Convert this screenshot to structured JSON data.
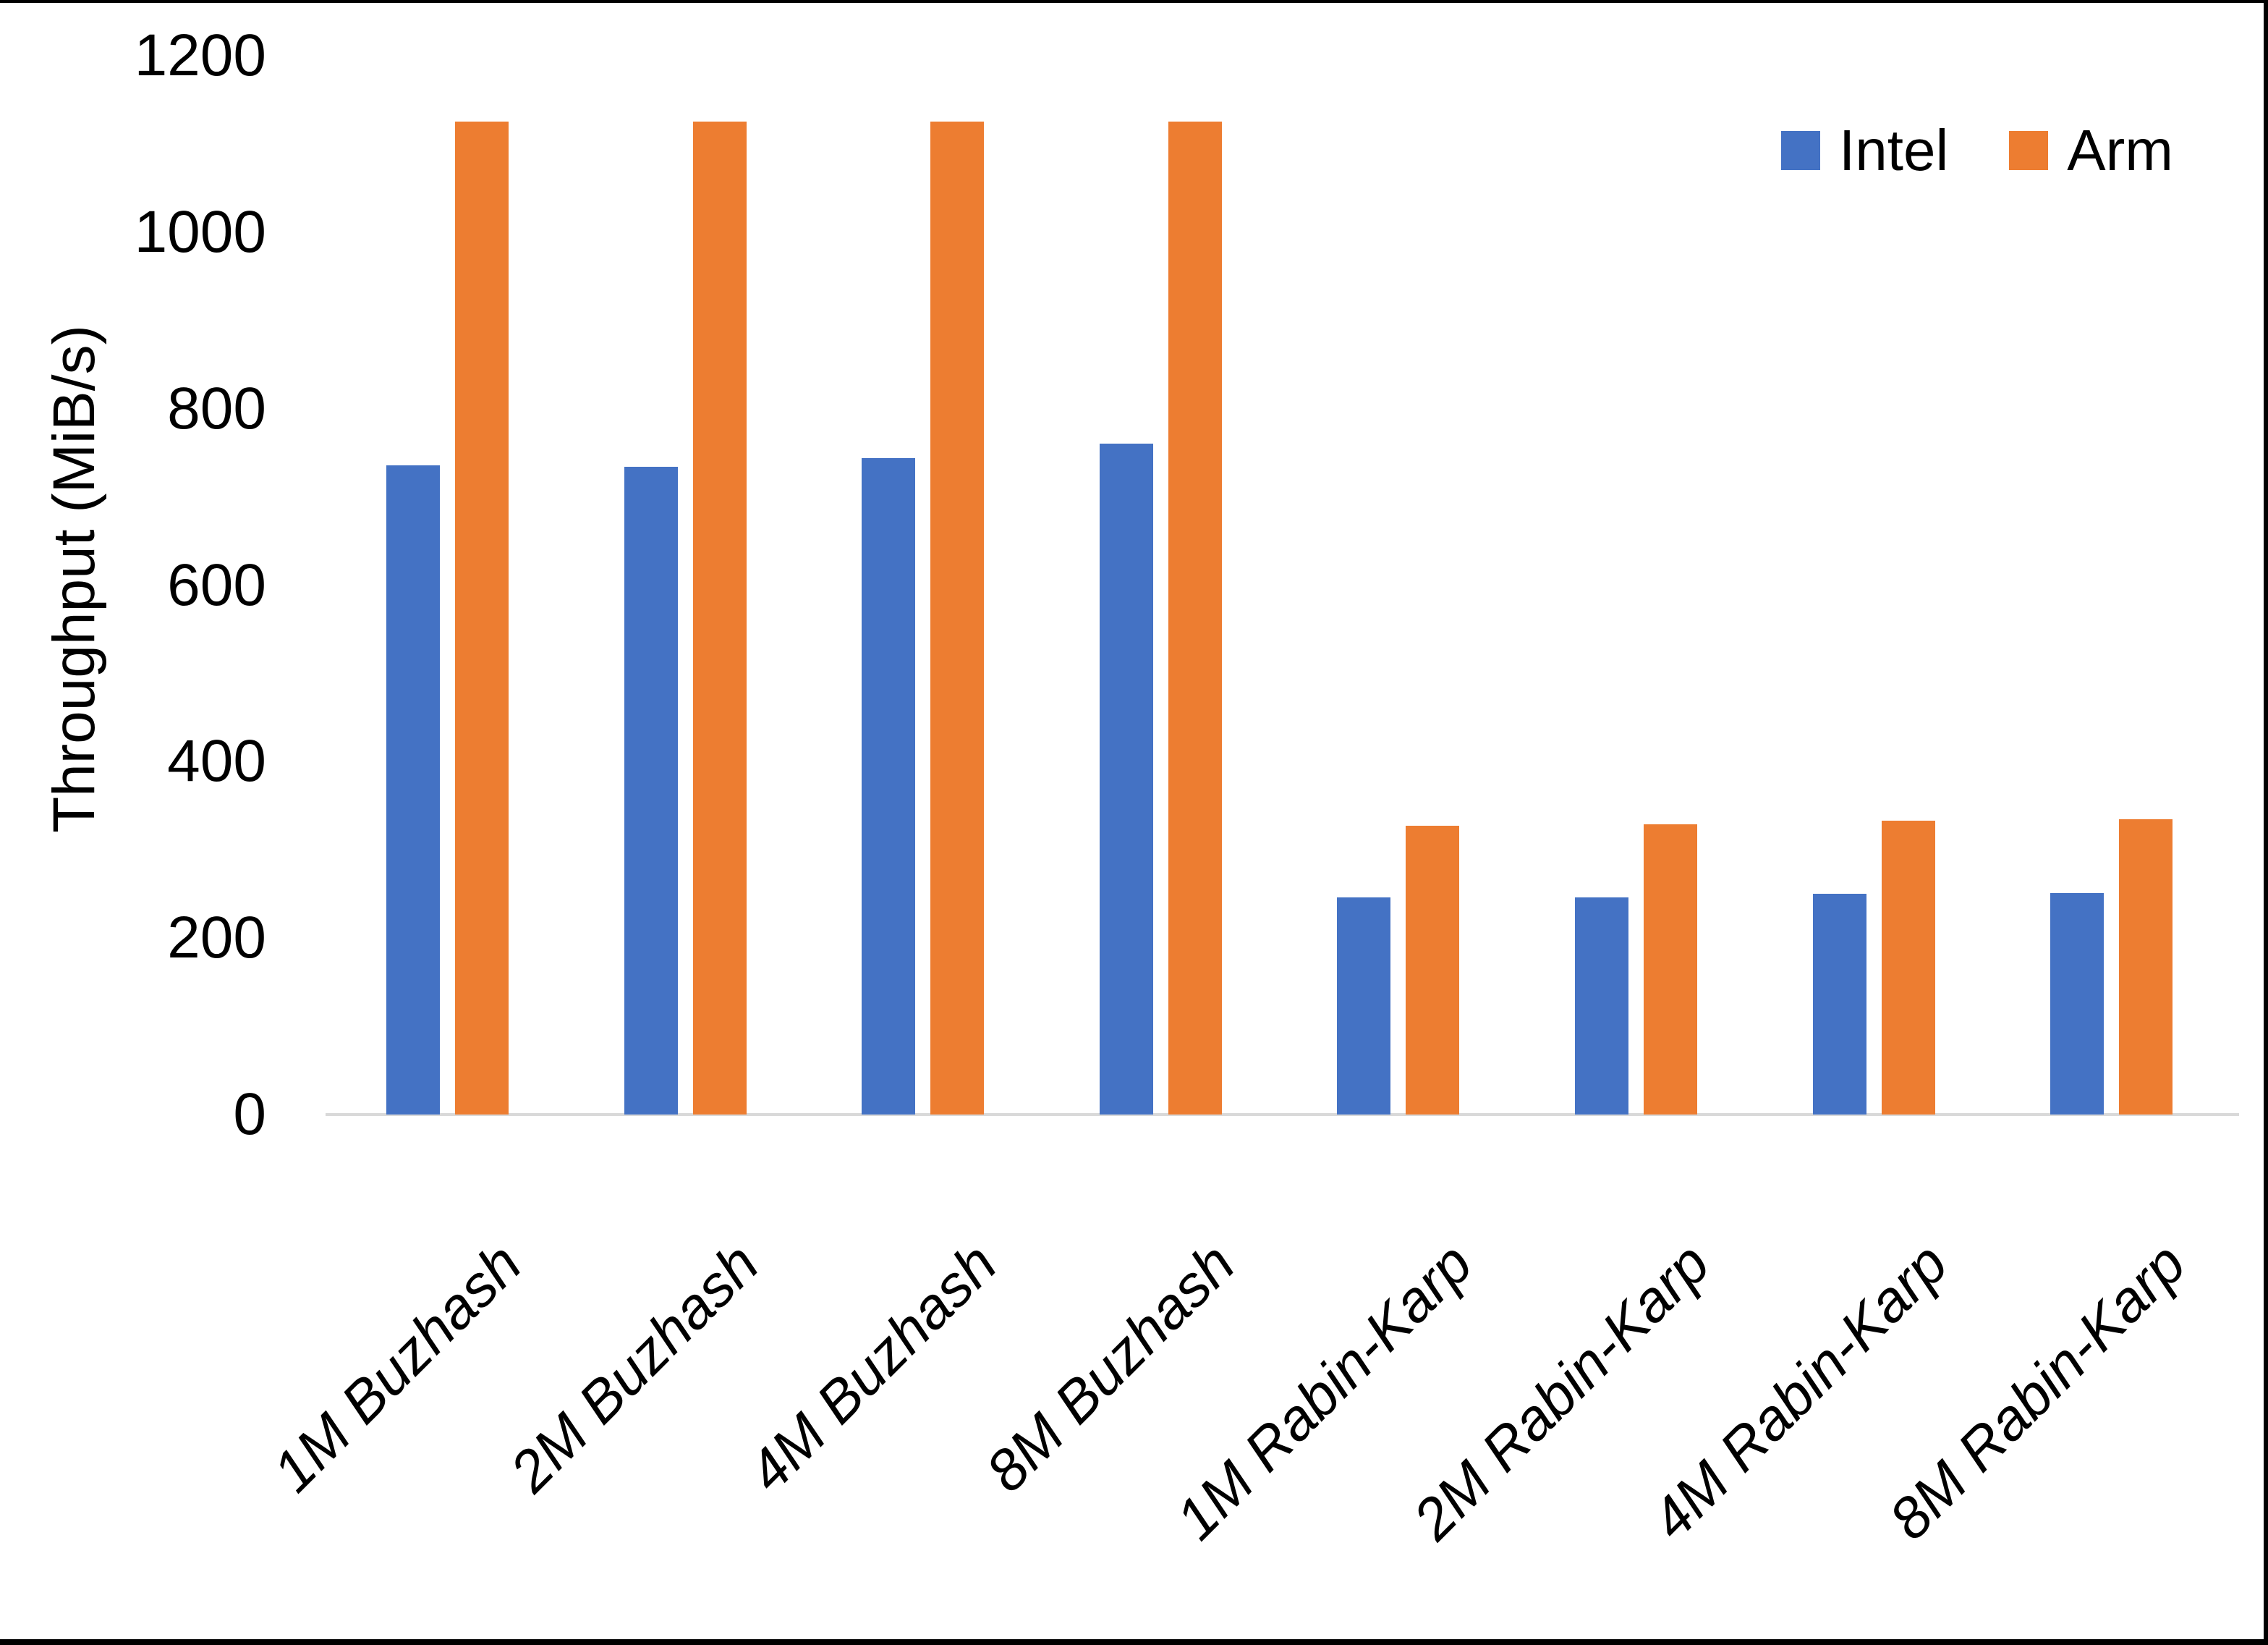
{
  "window": {
    "background": "#FFFFFF",
    "frame_color": "#000000"
  },
  "chart_data": {
    "type": "bar",
    "title": "",
    "xlabel": "",
    "ylabel": "Throughput (MiB/s)",
    "ylim": [
      0,
      1200
    ],
    "yticks": [
      0,
      200,
      400,
      600,
      800,
      1000,
      1200
    ],
    "grid": false,
    "legend_position": "top-right",
    "axis_line_color": "#D9D9D9",
    "text_color": "#000000",
    "categories": [
      "1M Buzhash",
      "2M Buzhash",
      "4M Buzhash",
      "8M Buzhash",
      "1M Rabin-Karp",
      "2M Rabin-Karp",
      "4M Rabin-Karp",
      "8M Rabin-Karp"
    ],
    "series": [
      {
        "name": "Intel",
        "color": "#4472C4",
        "values": [
          736,
          734,
          744,
          760,
          246,
          246,
          250,
          251
        ]
      },
      {
        "name": "Arm",
        "color": "#ED7D31",
        "values": [
          1125,
          1125,
          1125,
          1125,
          327,
          329,
          333,
          335
        ]
      }
    ]
  }
}
